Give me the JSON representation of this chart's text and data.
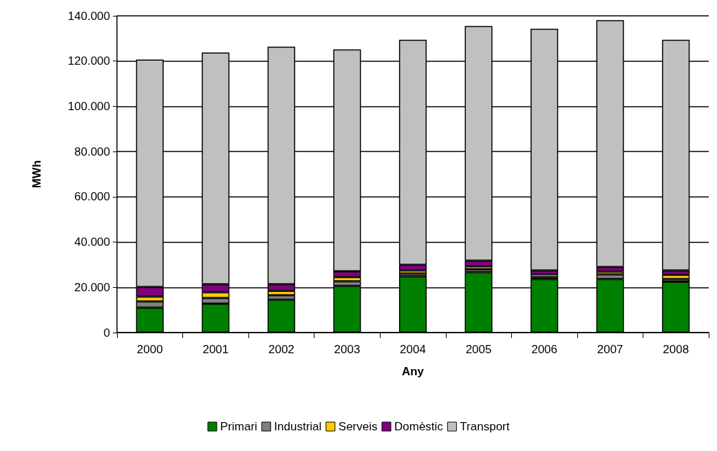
{
  "chart_data": {
    "type": "bar",
    "stacked": true,
    "xlabel": "Any",
    "ylabel": "MWh",
    "categories": [
      "2000",
      "2001",
      "2002",
      "2003",
      "2004",
      "2005",
      "2006",
      "2007",
      "2008"
    ],
    "series": [
      {
        "name": "Primari",
        "color": "#008000",
        "values": [
          11000,
          12800,
          14500,
          20600,
          24900,
          26700,
          23700,
          23700,
          22500
        ]
      },
      {
        "name": "Industrial",
        "color": "#808080",
        "values": [
          2800,
          2500,
          2000,
          2100,
          1200,
          1300,
          800,
          2000,
          1200
        ]
      },
      {
        "name": "Serveis",
        "color": "#ffcc00",
        "values": [
          2100,
          2500,
          1900,
          1800,
          1400,
          1300,
          1200,
          1200,
          1800
        ]
      },
      {
        "name": "Domèstic",
        "color": "#800080",
        "values": [
          4300,
          3600,
          3000,
          2600,
          2500,
          2500,
          1800,
          2100,
          2000
        ]
      },
      {
        "name": "Transport",
        "color": "#c0c0c0",
        "values": [
          100500,
          102400,
          105000,
          98100,
          99400,
          103700,
          106800,
          109100,
          101900
        ]
      }
    ],
    "ylim": [
      0,
      140000
    ],
    "yticks": [
      0,
      {
        "value": 20000,
        "label": "20.000"
      },
      {
        "value": 40000,
        "label": "40.000"
      },
      {
        "value": 60000,
        "label": "60.000"
      },
      {
        "value": 80000,
        "label": "80.000"
      },
      {
        "value": 100000,
        "label": "100.000"
      },
      {
        "value": 120000,
        "label": "120.000"
      },
      {
        "value": 140000,
        "label": "140.000"
      }
    ],
    "grid": "y",
    "legend": "bottom"
  }
}
